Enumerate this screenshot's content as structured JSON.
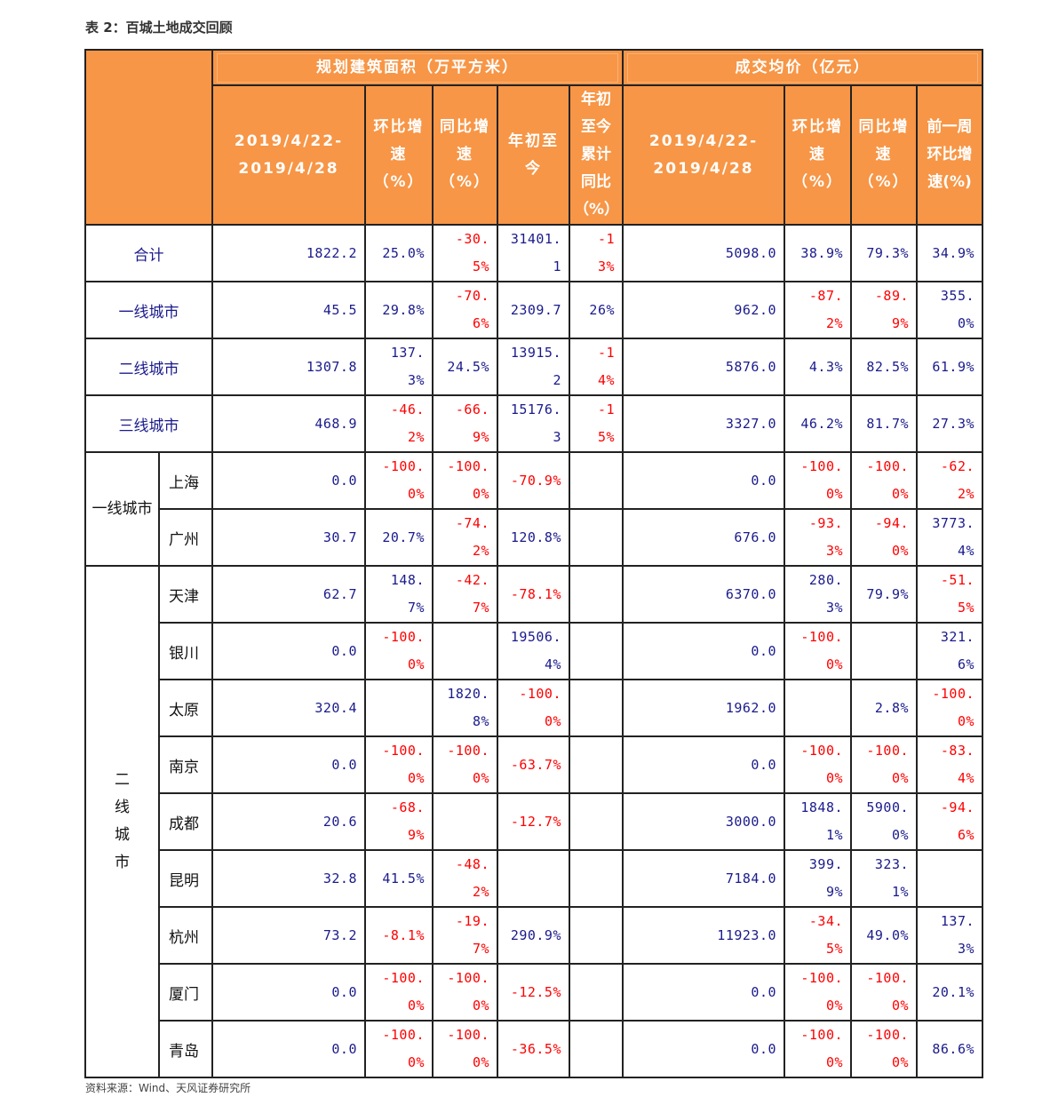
{
  "title": "表 2：百城土地成交回顾",
  "source": "资料来源：Wind、天风证券研究所",
  "colors": {
    "header_bg": "#f79646",
    "positive": "#1a1a8c",
    "negative": "#ff0000",
    "tier_label": "#f26b1d"
  },
  "header": {
    "group_area": "规划建筑面积（万平方米）",
    "group_price": "成交均价（亿元）",
    "area_columns": [
      "2019/4/22-2019/4/28",
      "环比增速（%）",
      "同比增速（%）",
      "年初至今",
      "年初至今累计同比（%）"
    ],
    "price_columns": [
      "2019/4/22-2019/4/28",
      "环比增速（%）",
      "同比增速（%）",
      "前一周环比增速(%)"
    ]
  },
  "summary_rows": [
    {
      "label": "合计",
      "values": [
        "1822.2",
        "25.0%",
        "-30.5%",
        "31401.1",
        "-13%",
        "5098.0",
        "38.9%",
        "79.3%",
        "34.9%"
      ]
    },
    {
      "label": "一线城市",
      "values": [
        "45.5",
        "29.8%",
        "-70.6%",
        "2309.7",
        "26%",
        "962.0",
        "-87.2%",
        "-89.9%",
        "355.0%"
      ]
    },
    {
      "label": "二线城市",
      "values": [
        "1307.8",
        "137.3%",
        "24.5%",
        "13915.2",
        "-14%",
        "5876.0",
        "4.3%",
        "82.5%",
        "61.9%"
      ]
    },
    {
      "label": "三线城市",
      "values": [
        "468.9",
        "-46.2%",
        "-66.9%",
        "15176.3",
        "-15%",
        "3327.0",
        "46.2%",
        "81.7%",
        "27.3%"
      ]
    }
  ],
  "groups": [
    {
      "label": "一线城市",
      "cities": [
        {
          "name": "上海",
          "values": [
            "0.0",
            "-100.0%",
            "-100.0%",
            "-70.9%",
            "",
            "0.0",
            "-100.0%",
            "-100.0%",
            "-62.2%"
          ]
        },
        {
          "name": "广州",
          "values": [
            "30.7",
            "20.7%",
            "-74.2%",
            "120.8%",
            "",
            "676.0",
            "-93.3%",
            "-94.0%",
            "3773.4%"
          ]
        }
      ]
    },
    {
      "label": "二线城市",
      "cities": [
        {
          "name": "天津",
          "values": [
            "62.7",
            "148.7%",
            "-42.7%",
            "-78.1%",
            "",
            "6370.0",
            "280.3%",
            "79.9%",
            "-51.5%"
          ]
        },
        {
          "name": "银川",
          "values": [
            "0.0",
            "-100.0%",
            "",
            "19506.4%",
            "",
            "0.0",
            "-100.0%",
            "",
            "321.6%"
          ]
        },
        {
          "name": "太原",
          "values": [
            "320.4",
            "",
            "1820.8%",
            "-100.0%",
            "",
            "1962.0",
            "",
            "2.8%",
            "-100.0%"
          ]
        },
        {
          "name": "南京",
          "values": [
            "0.0",
            "-100.0%",
            "-100.0%",
            "-63.7%",
            "",
            "0.0",
            "-100.0%",
            "-100.0%",
            "-83.4%"
          ]
        },
        {
          "name": "成都",
          "values": [
            "20.6",
            "-68.9%",
            "",
            "-12.7%",
            "",
            "3000.0",
            "1848.1%",
            "5900.0%",
            "-94.6%"
          ]
        },
        {
          "name": "昆明",
          "values": [
            "32.8",
            "41.5%",
            "-48.2%",
            "",
            "",
            "7184.0",
            "399.9%",
            "323.1%",
            ""
          ]
        },
        {
          "name": "杭州",
          "values": [
            "73.2",
            "-8.1%",
            "-19.7%",
            "290.9%",
            "",
            "11923.0",
            "-34.5%",
            "49.0%",
            "137.3%"
          ]
        },
        {
          "name": "厦门",
          "values": [
            "0.0",
            "-100.0%",
            "-100.0%",
            "-12.5%",
            "",
            "0.0",
            "-100.0%",
            "-100.0%",
            "20.1%"
          ]
        },
        {
          "name": "青岛",
          "values": [
            "0.0",
            "-100.0%",
            "-100.0%",
            "-36.5%",
            "",
            "0.0",
            "-100.0%",
            "-100.0%",
            "86.6%"
          ]
        }
      ]
    }
  ]
}
